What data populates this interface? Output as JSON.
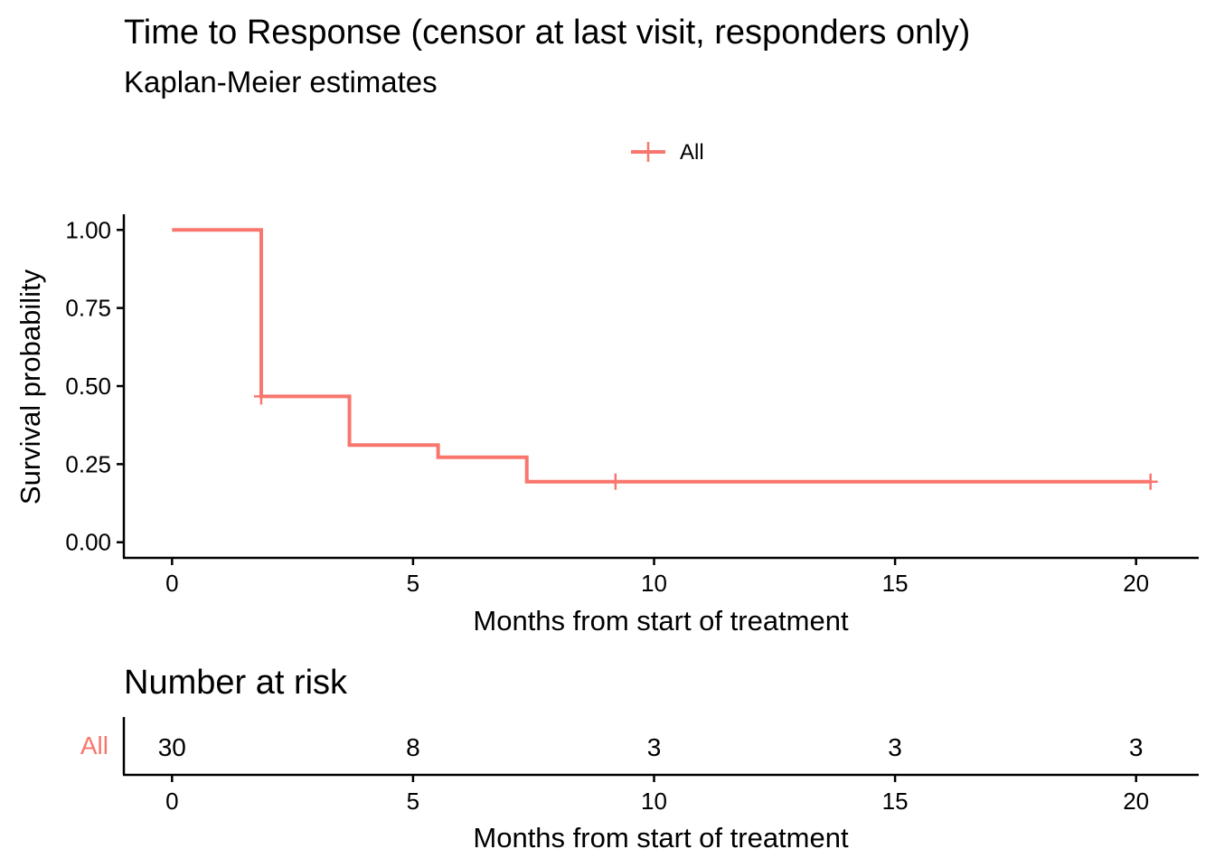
{
  "chart_data": [
    {
      "type": "line",
      "subtype": "kaplan-meier step",
      "title": "Time to Response (censor at last visit, responders only)",
      "subtitle": "Kaplan-Meier estimates",
      "xlabel": "Months from start of treatment",
      "ylabel": "Survival probability",
      "xlim": [
        -1,
        21.3
      ],
      "ylim": [
        -0.05,
        1.05
      ],
      "x_ticks": [
        0,
        5,
        10,
        15,
        20
      ],
      "y_ticks": [
        0.0,
        0.25,
        0.5,
        0.75,
        1.0
      ],
      "x_tick_labels": [
        "0",
        "5",
        "10",
        "15",
        "20"
      ],
      "y_tick_labels": [
        "0.00",
        "0.25",
        "0.50",
        "0.75",
        "1.00"
      ],
      "legend": {
        "position": "top",
        "entries": [
          "All"
        ]
      },
      "grid": false,
      "series": [
        {
          "name": "All",
          "color": "#F8766D",
          "steps": [
            {
              "x": 0,
              "y": 1.0
            },
            {
              "x": 1.85,
              "y": 0.467
            },
            {
              "x": 3.68,
              "y": 0.311
            },
            {
              "x": 5.52,
              "y": 0.272
            },
            {
              "x": 7.36,
              "y": 0.194
            },
            {
              "x": 20.3,
              "y": 0.194
            }
          ],
          "censored": [
            {
              "x": 1.85,
              "y": 0.467
            },
            {
              "x": 9.2,
              "y": 0.194
            },
            {
              "x": 20.3,
              "y": 0.194
            }
          ]
        }
      ]
    },
    {
      "type": "table",
      "title": "Number at risk",
      "xlabel": "Months from start of treatment",
      "x_ticks": [
        0,
        5,
        10,
        15,
        20
      ],
      "x_tick_labels": [
        "0",
        "5",
        "10",
        "15",
        "20"
      ],
      "rows": [
        {
          "name": "All",
          "color": "#F8766D",
          "values": [
            "30",
            "8",
            "3",
            "3",
            "3"
          ]
        }
      ]
    }
  ]
}
